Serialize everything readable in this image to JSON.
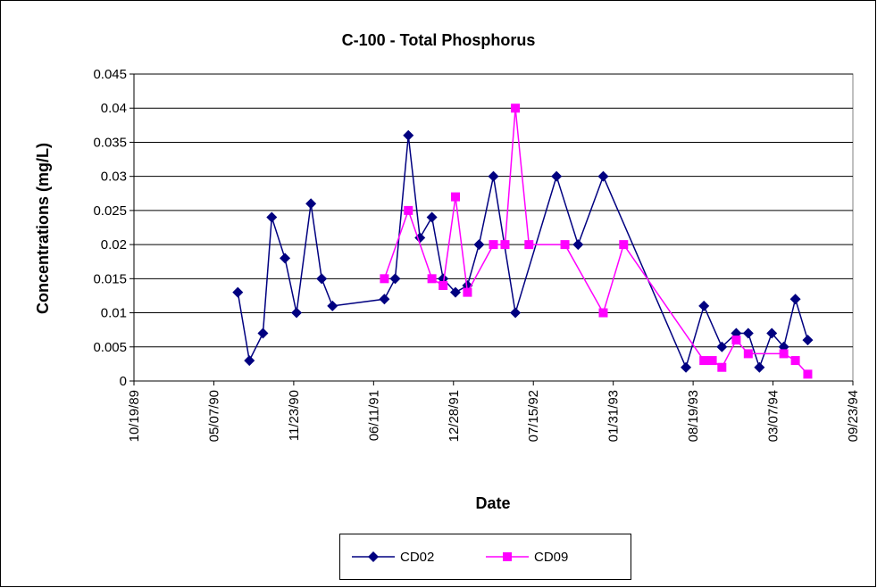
{
  "chart_data": {
    "type": "line",
    "title": "C-100 - Total Phosphorus",
    "x_label": "Date",
    "y_label": "Concentrations (mg/L)",
    "xlim": [
      "1989-10-19",
      "1994-09-23"
    ],
    "xticks": [
      {
        "value": "1989-10-19",
        "label": "10/19/89"
      },
      {
        "value": "1990-05-07",
        "label": "05/07/90"
      },
      {
        "value": "1990-11-23",
        "label": "11/23/90"
      },
      {
        "value": "1991-06-11",
        "label": "06/11/91"
      },
      {
        "value": "1991-12-28",
        "label": "12/28/91"
      },
      {
        "value": "1992-07-15",
        "label": "07/15/92"
      },
      {
        "value": "1993-01-31",
        "label": "01/31/93"
      },
      {
        "value": "1993-08-19",
        "label": "08/19/93"
      },
      {
        "value": "1994-03-07",
        "label": "03/07/94"
      },
      {
        "value": "1994-09-23",
        "label": "09/23/94"
      }
    ],
    "ylim": [
      0,
      0.045
    ],
    "yticks": [
      0,
      0.005,
      0.01,
      0.015,
      0.02,
      0.025,
      0.03,
      0.035,
      0.04,
      0.045
    ],
    "grid": true,
    "legend": "bottom",
    "series": [
      {
        "name": "CD02",
        "color": "#000080",
        "marker": "diamond",
        "x": [
          "1990-07-06",
          "1990-08-04",
          "1990-09-07",
          "1990-09-29",
          "1990-11-01",
          "1990-11-30",
          "1991-01-05",
          "1991-02-01",
          "1991-02-28",
          "1991-07-08",
          "1991-08-04",
          "1991-09-06",
          "1991-10-05",
          "1991-11-04",
          "1991-12-02",
          "1992-01-02",
          "1992-02-01",
          "1992-03-01",
          "1992-04-06",
          "1992-05-31",
          "1992-09-11",
          "1992-11-04",
          "1993-01-06",
          "1993-08-01",
          "1993-09-15",
          "1993-10-30",
          "1993-12-05",
          "1994-01-04",
          "1994-02-01",
          "1994-03-04",
          "1994-04-03",
          "1994-05-02",
          "1994-06-02"
        ],
        "values": [
          0.013,
          0.003,
          0.007,
          0.024,
          0.018,
          0.01,
          0.026,
          0.015,
          0.011,
          0.012,
          0.015,
          0.036,
          0.021,
          0.024,
          0.015,
          0.013,
          0.014,
          0.02,
          0.03,
          0.01,
          0.03,
          0.02,
          0.03,
          0.002,
          0.011,
          0.005,
          0.007,
          0.007,
          0.002,
          0.007,
          0.005,
          0.012,
          0.006
        ]
      },
      {
        "name": "CD09",
        "color": "#ff00ff",
        "marker": "square",
        "x": [
          "1991-07-08",
          "1991-09-06",
          "1991-11-04",
          "1991-12-02",
          "1992-01-02",
          "1992-02-01",
          "1992-04-06",
          "1992-05-05",
          "1992-05-31",
          "1992-07-04",
          "1992-10-02",
          "1993-01-06",
          "1993-02-26",
          "1993-09-15",
          "1993-10-06",
          "1993-10-30",
          "1993-12-05",
          "1994-01-04",
          "1994-04-03",
          "1994-05-02",
          "1994-06-02"
        ],
        "values": [
          0.015,
          0.025,
          0.015,
          0.014,
          0.027,
          0.013,
          0.02,
          0.02,
          0.04,
          0.02,
          0.02,
          0.01,
          0.02,
          0.003,
          0.003,
          0.002,
          0.006,
          0.004,
          0.004,
          0.003,
          0.001
        ]
      }
    ]
  }
}
